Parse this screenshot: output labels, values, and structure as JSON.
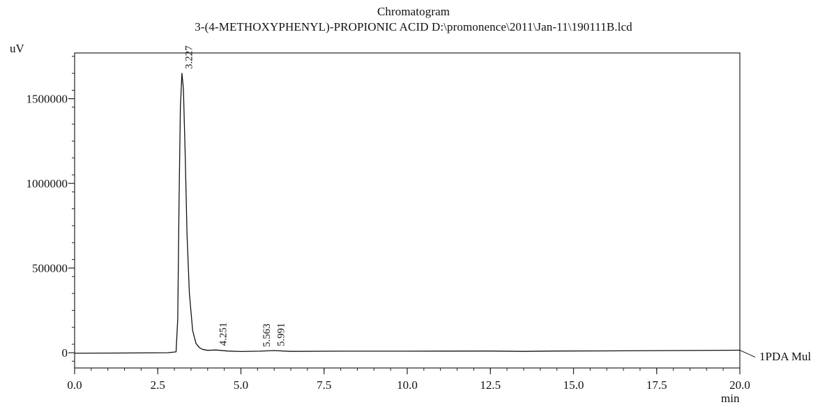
{
  "chart_data": {
    "type": "line",
    "title": "Chromatogram",
    "subtitle": "3-(4-METHOXYPHENYL)-PROPIONIC ACID D:\\promonence\\2011\\Jan-11\\190111B.lcd",
    "xlabel": "min",
    "ylabel": "uV",
    "xlim": [
      0.0,
      20.0
    ],
    "ylim": [
      -90000,
      1770000
    ],
    "x_ticks": [
      "0.0",
      "2.5",
      "5.0",
      "7.5",
      "10.0",
      "12.5",
      "15.0",
      "17.5",
      "20.0"
    ],
    "y_ticks": [
      "0",
      "500000",
      "1000000",
      "1500000"
    ],
    "grid": false,
    "series": [
      {
        "name": "1PDA Mul",
        "x": [
          0.0,
          1.0,
          2.0,
          2.8,
          3.05,
          3.1,
          3.14,
          3.18,
          3.227,
          3.27,
          3.32,
          3.38,
          3.45,
          3.55,
          3.65,
          3.75,
          3.85,
          4.0,
          4.251,
          4.6,
          5.0,
          5.563,
          5.991,
          6.5,
          8.0,
          10.0,
          12.5,
          13.5,
          14.5,
          16.0,
          18.0,
          20.0
        ],
        "y": [
          -3000,
          -2000,
          -1000,
          0,
          5000,
          200000,
          900000,
          1450000,
          1650000,
          1560000,
          1200000,
          700000,
          350000,
          130000,
          55000,
          30000,
          20000,
          14000,
          16000,
          10000,
          7000,
          9000,
          13000,
          8000,
          9000,
          9000,
          10000,
          8000,
          10000,
          11000,
          13000,
          15000
        ]
      }
    ],
    "peaks": [
      {
        "rt": 3.227,
        "label": "3.227",
        "height": 1650000
      },
      {
        "rt": 4.251,
        "label": "4.251",
        "height": 16000
      },
      {
        "rt": 5.563,
        "label": "5.563",
        "height": 9000
      },
      {
        "rt": 5.991,
        "label": "5.991",
        "height": 13000
      }
    ],
    "legend": "right of trace end"
  }
}
